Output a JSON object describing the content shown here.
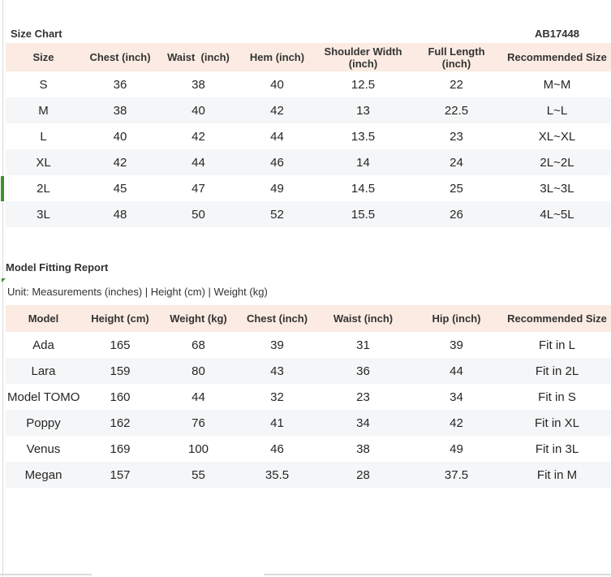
{
  "colors": {
    "header_bg": "#fbebe2",
    "stripe_bg": "#f5f6f7",
    "accent_green": "#3f8f2f",
    "divider": "#dcdcdc"
  },
  "size_chart": {
    "title": "Size Chart",
    "code": "AB17448",
    "columns": [
      "Size",
      "Chest (inch)",
      "Waist  (inch)",
      "Hem (inch)",
      "Shoulder Width (inch)",
      "Full Length (inch)",
      "Recommended Size"
    ],
    "rows": [
      [
        "S",
        "36",
        "38",
        "40",
        "12.5",
        "22",
        "M~M"
      ],
      [
        "M",
        "38",
        "40",
        "42",
        "13",
        "22.5",
        "L~L"
      ],
      [
        "L",
        "40",
        "42",
        "44",
        "13.5",
        "23",
        "XL~XL"
      ],
      [
        "XL",
        "42",
        "44",
        "46",
        "14",
        "24",
        "2L~2L"
      ],
      [
        "2L",
        "45",
        "47",
        "49",
        "14.5",
        "25",
        "3L~3L"
      ],
      [
        "3L",
        "48",
        "50",
        "52",
        "15.5",
        "26",
        "4L~5L"
      ]
    ]
  },
  "fitting_report": {
    "title": "Model Fitting Report",
    "unit_note": "Unit: Measurements (inches) | Height (cm) | Weight (kg)",
    "columns": [
      "Model",
      "Height (cm)",
      "Weight (kg)",
      "Chest (inch)",
      "Waist (inch)",
      "Hip (inch)",
      "Recommended Size"
    ],
    "rows": [
      [
        "Ada",
        "165",
        "68",
        "39",
        "31",
        "39",
        "Fit in L"
      ],
      [
        "Lara",
        "159",
        "80",
        "43",
        "36",
        "44",
        "Fit in 2L"
      ],
      [
        "Model TOMO",
        "160",
        "44",
        "32",
        "23",
        "34",
        "Fit in S"
      ],
      [
        "Poppy",
        "162",
        "76",
        "41",
        "34",
        "42",
        "Fit in XL"
      ],
      [
        "Venus",
        "169",
        "100",
        "46",
        "38",
        "49",
        "Fit in 3L"
      ],
      [
        "Megan",
        "157",
        "55",
        "35.5",
        "28",
        "37.5",
        "Fit in M"
      ]
    ]
  }
}
